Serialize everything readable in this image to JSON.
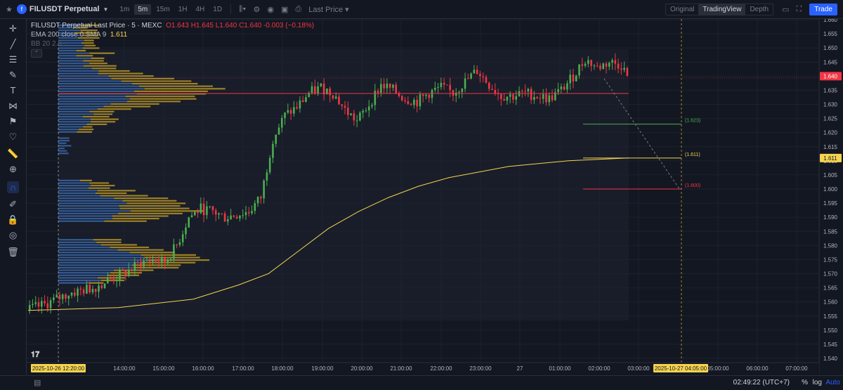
{
  "header": {
    "symbol": "FILUSDT Perpetual",
    "timeframes": [
      "1m",
      "5m",
      "15m",
      "1H",
      "4H",
      "1D"
    ],
    "active_timeframe": "5m",
    "price_source": "Last Price ▾",
    "views": [
      "Original",
      "TradingView",
      "Depth"
    ],
    "active_view": "TradingView",
    "trade_label": "Trade"
  },
  "legend": {
    "title": "FILUSDT Perpetual Last Price · 5 · MEXC",
    "ohlc": "O1.643 H1.645 L1.640 C1.640 -0.003 (−0.18%)",
    "ema_label": "EMA 200 close 0 SMA 9",
    "ema_value": "1.611",
    "bb_label": "BB 20 2.5"
  },
  "price_axis": {
    "ticks": [
      "1.660",
      "1.655",
      "1.650",
      "1.645",
      "1.640",
      "1.635",
      "1.630",
      "1.625",
      "1.620",
      "1.615",
      "1.610",
      "1.605",
      "1.600",
      "1.595",
      "1.590",
      "1.585",
      "1.580",
      "1.575",
      "1.570",
      "1.565",
      "1.560",
      "1.555",
      "1.550",
      "1.545",
      "1.540"
    ],
    "last_price_tag": "1.640",
    "ema_tag": "1.611"
  },
  "time_axis": {
    "ticks": [
      "14:00:00",
      "15:00:00",
      "16:00:00",
      "17:00:00",
      "18:00:00",
      "19:00:00",
      "20:00:00",
      "21:00:00",
      "22:00:00",
      "23:00:00",
      "27",
      "01:00:00",
      "02:00:00",
      "03:00:00",
      "05:00:00",
      "06:00:00",
      "07:00:00"
    ],
    "cursor_left_label": "2025-10-26  12:20:00",
    "cursor_right_label": "2025-10-27  04:05:00"
  },
  "drawings": {
    "levels": [
      {
        "label": "(1.623)",
        "price": 1.623,
        "color": "#4caf50"
      },
      {
        "label": "(1.611)",
        "price": 1.611,
        "color": "#f5d44f"
      },
      {
        "label": "(1.600)",
        "price": 1.6,
        "color": "#f23645"
      }
    ],
    "poc_price": 1.635
  },
  "colors": {
    "up": "#26a69a",
    "up_bright": "#4caf50",
    "down": "#f23645",
    "ema": "#f5d44f",
    "vp_up": "#3d6fb6",
    "vp_down": "#c9a227",
    "accent": "#2962ff"
  },
  "chart_data": {
    "type": "candlestick",
    "title": "FILUSDT Perpetual Last Price · 5 · MEXC",
    "y_range": [
      1.538,
      1.662
    ],
    "overlays": [
      {
        "name": "EMA 200 close 0 SMA 9",
        "last": 1.611
      }
    ],
    "trend_path": [
      [
        0,
        1.557
      ],
      [
        6,
        1.559
      ],
      [
        10,
        1.561
      ],
      [
        14,
        1.563
      ],
      [
        18,
        1.564
      ],
      [
        22,
        1.565
      ],
      [
        26,
        1.567
      ],
      [
        30,
        1.569
      ],
      [
        34,
        1.571
      ],
      [
        38,
        1.574
      ],
      [
        42,
        1.575
      ],
      [
        46,
        1.574
      ],
      [
        50,
        1.58
      ],
      [
        54,
        1.59
      ],
      [
        58,
        1.593
      ],
      [
        62,
        1.592
      ],
      [
        66,
        1.59
      ],
      [
        70,
        1.591
      ],
      [
        74,
        1.592
      ],
      [
        78,
        1.597
      ],
      [
        82,
        1.618
      ],
      [
        86,
        1.626
      ],
      [
        90,
        1.629
      ],
      [
        94,
        1.634
      ],
      [
        98,
        1.636
      ],
      [
        102,
        1.634
      ],
      [
        106,
        1.628
      ],
      [
        110,
        1.624
      ],
      [
        114,
        1.63
      ],
      [
        118,
        1.637
      ],
      [
        122,
        1.635
      ],
      [
        126,
        1.632
      ],
      [
        130,
        1.631
      ],
      [
        134,
        1.634
      ],
      [
        138,
        1.636
      ],
      [
        142,
        1.634
      ],
      [
        146,
        1.638
      ],
      [
        150,
        1.642
      ],
      [
        154,
        1.637
      ],
      [
        158,
        1.633
      ],
      [
        162,
        1.633
      ],
      [
        166,
        1.634
      ],
      [
        170,
        1.633
      ],
      [
        174,
        1.632
      ],
      [
        178,
        1.635
      ],
      [
        182,
        1.64
      ],
      [
        186,
        1.646
      ],
      [
        190,
        1.643
      ],
      [
        194,
        1.645
      ],
      [
        198,
        1.644
      ],
      [
        200,
        1.64
      ]
    ],
    "ema_path": [
      [
        0,
        1.557
      ],
      [
        30,
        1.558
      ],
      [
        55,
        1.561
      ],
      [
        70,
        1.566
      ],
      [
        80,
        1.57
      ],
      [
        90,
        1.578
      ],
      [
        100,
        1.586
      ],
      [
        110,
        1.592
      ],
      [
        120,
        1.597
      ],
      [
        130,
        1.601
      ],
      [
        140,
        1.604
      ],
      [
        150,
        1.606
      ],
      [
        160,
        1.608
      ],
      [
        170,
        1.609
      ],
      [
        180,
        1.61
      ],
      [
        200,
        1.611
      ]
    ]
  }
}
